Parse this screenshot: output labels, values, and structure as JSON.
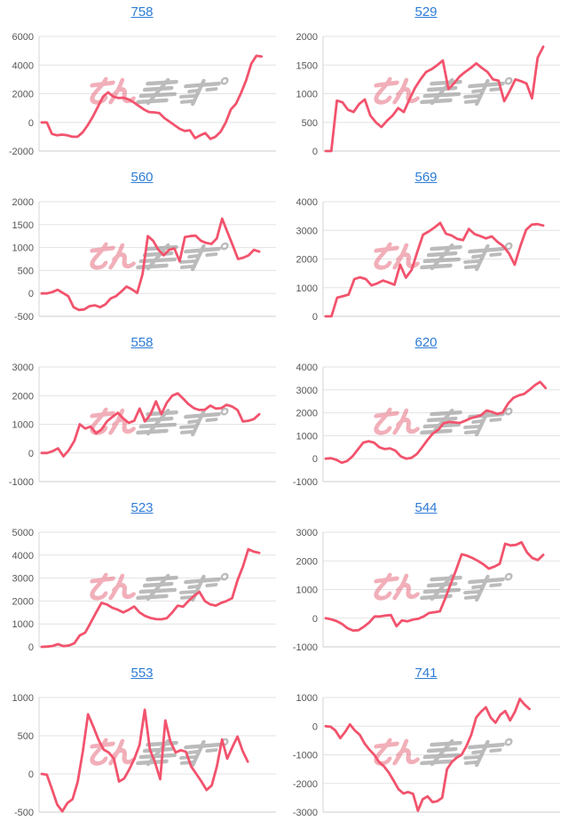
{
  "page": {
    "background": "#ffffff"
  },
  "style": {
    "line_color": "#f2536d",
    "link_color": "#2e7cd6",
    "grid_color": "#e3e3e3",
    "axis_color": "#d4d4d4",
    "tick_label_color": "#565656",
    "watermark_pink": "#e76f81",
    "watermark_gray": "#8f8f8f"
  },
  "watermark": {
    "text_pink": "みん",
    "text_gray": "レポ"
  },
  "chart_data": [
    {
      "type": "line",
      "title": "758",
      "ylabel": "",
      "xlabel": "",
      "yticks": [
        6000,
        4000,
        2000,
        0,
        -2000
      ],
      "ylim": [
        -2000,
        6000
      ],
      "grid": true,
      "span": 0.96,
      "values": [
        0,
        0,
        -800,
        -900,
        -850,
        -900,
        -1000,
        -1000,
        -700,
        -200,
        400,
        1100,
        1800,
        2100,
        1800,
        1700,
        1720,
        1600,
        1400,
        1150,
        900,
        720,
        700,
        650,
        300,
        50,
        -200,
        -450,
        -600,
        -550,
        -1100,
        -900,
        -750,
        -1150,
        -1000,
        -650,
        0,
        900,
        1300,
        2050,
        2950,
        4100,
        4650,
        4600
      ]
    },
    {
      "type": "line",
      "title": "529",
      "ylabel": "",
      "xlabel": "",
      "yticks": [
        2000,
        1500,
        1000,
        500,
        0
      ],
      "ylim": [
        0,
        2000
      ],
      "grid": true,
      "span": 0.95,
      "values": [
        0,
        0,
        880,
        850,
        720,
        680,
        820,
        900,
        620,
        500,
        420,
        530,
        620,
        750,
        680,
        900,
        1100,
        1250,
        1380,
        1430,
        1500,
        1580,
        1080,
        1180,
        1300,
        1380,
        1450,
        1530,
        1450,
        1380,
        1250,
        1230,
        870,
        1050,
        1250,
        1220,
        1180,
        920,
        1630,
        1820
      ]
    },
    {
      "type": "line",
      "title": "560",
      "ylabel": "",
      "xlabel": "",
      "yticks": [
        2000,
        1500,
        1000,
        500,
        0,
        -500
      ],
      "ylim": [
        -500,
        2000
      ],
      "grid": true,
      "span": 0.95,
      "values": [
        0,
        0,
        30,
        80,
        10,
        -60,
        -300,
        -360,
        -350,
        -280,
        -260,
        -300,
        -240,
        -110,
        -60,
        40,
        150,
        90,
        10,
        420,
        1250,
        1150,
        950,
        830,
        950,
        980,
        700,
        1230,
        1250,
        1260,
        1150,
        1100,
        1080,
        1200,
        1630,
        1340,
        1050,
        750,
        780,
        830,
        950,
        910
      ]
    },
    {
      "type": "line",
      "title": "569",
      "ylabel": "",
      "xlabel": "",
      "yticks": [
        4000,
        3000,
        2000,
        1000,
        0
      ],
      "ylim": [
        0,
        4000
      ],
      "grid": true,
      "span": 0.95,
      "values": [
        0,
        0,
        650,
        700,
        760,
        1300,
        1360,
        1300,
        1080,
        1150,
        1250,
        1180,
        1100,
        1800,
        1350,
        1620,
        2250,
        2850,
        2960,
        3100,
        3260,
        2880,
        2820,
        2700,
        2660,
        3050,
        2870,
        2800,
        2720,
        2790,
        2600,
        2450,
        2200,
        1800,
        2450,
        3020,
        3200,
        3220,
        3170
      ]
    },
    {
      "type": "line",
      "title": "558",
      "ylabel": "",
      "xlabel": "",
      "yticks": [
        3000,
        2000,
        1000,
        0,
        -1000
      ],
      "ylim": [
        -1000,
        3000
      ],
      "grid": true,
      "span": 0.95,
      "values": [
        0,
        0,
        60,
        160,
        -120,
        100,
        420,
        1000,
        850,
        920,
        680,
        820,
        1100,
        1260,
        1400,
        1200,
        1050,
        1120,
        1550,
        1100,
        1350,
        1800,
        1350,
        1750,
        2000,
        2080,
        1900,
        1700,
        1560,
        1500,
        1510,
        1650,
        1550,
        1560,
        1680,
        1620,
        1500,
        1100,
        1120,
        1180,
        1350
      ]
    },
    {
      "type": "line",
      "title": "620",
      "ylabel": "",
      "xlabel": "",
      "yticks": [
        4000,
        3000,
        2000,
        1000,
        0,
        -1000
      ],
      "ylim": [
        -1000,
        4000
      ],
      "grid": true,
      "span": 0.96,
      "values": [
        0,
        20,
        -50,
        -180,
        -100,
        100,
        400,
        700,
        760,
        700,
        500,
        420,
        450,
        350,
        100,
        0,
        40,
        200,
        500,
        820,
        1100,
        1260,
        1550,
        1600,
        1580,
        1560,
        1650,
        1760,
        1820,
        1900,
        2100,
        2040,
        1950,
        2010,
        2400,
        2650,
        2760,
        2820,
        3000,
        3200,
        3350,
        3080
      ]
    },
    {
      "type": "line",
      "title": "523",
      "ylabel": "",
      "xlabel": "",
      "yticks": [
        5000,
        4000,
        3000,
        2000,
        1000,
        0
      ],
      "ylim": [
        0,
        5000
      ],
      "grid": true,
      "span": 0.95,
      "values": [
        0,
        10,
        40,
        120,
        30,
        60,
        160,
        500,
        620,
        1050,
        1500,
        1920,
        1850,
        1700,
        1620,
        1500,
        1620,
        1760,
        1500,
        1350,
        1260,
        1210,
        1200,
        1250,
        1500,
        1800,
        1750,
        2000,
        2220,
        2400,
        2000,
        1850,
        1800,
        1920,
        2000,
        2120,
        2900,
        3500,
        4260,
        4150,
        4100
      ]
    },
    {
      "type": "line",
      "title": "544",
      "ylabel": "",
      "xlabel": "",
      "yticks": [
        3000,
        2000,
        1000,
        0,
        -1000
      ],
      "ylim": [
        -1000,
        3000
      ],
      "grid": true,
      "span": 0.95,
      "values": [
        0,
        -40,
        -100,
        -200,
        -350,
        -430,
        -420,
        -300,
        -150,
        60,
        60,
        90,
        110,
        -280,
        -80,
        -110,
        -50,
        -20,
        60,
        180,
        210,
        240,
        700,
        1200,
        1700,
        2230,
        2180,
        2100,
        2000,
        1880,
        1730,
        1800,
        1900,
        2600,
        2540,
        2560,
        2650,
        2300,
        2100,
        2030,
        2210
      ]
    },
    {
      "type": "line",
      "title": "553",
      "ylabel": "",
      "xlabel": "",
      "yticks": [
        1000,
        500,
        0,
        -500
      ],
      "ylim": [
        -500,
        1000
      ],
      "grid": true,
      "span": 0.9,
      "values": [
        0,
        -10,
        -200,
        -400,
        -490,
        -380,
        -330,
        -100,
        300,
        780,
        620,
        450,
        320,
        280,
        200,
        -100,
        -60,
        60,
        200,
        380,
        840,
        320,
        150,
        -70,
        700,
        420,
        280,
        310,
        290,
        100,
        0,
        -100,
        -210,
        -150,
        100,
        450,
        200,
        350,
        490,
        300,
        160
      ]
    },
    {
      "type": "line",
      "title": "741",
      "ylabel": "",
      "xlabel": "",
      "yticks": [
        1000,
        0,
        -1000,
        -2000,
        -3000
      ],
      "ylim": [
        -3000,
        1000
      ],
      "grid": true,
      "span": 0.89,
      "values": [
        0,
        -20,
        -150,
        -420,
        -200,
        60,
        -150,
        -300,
        -600,
        -820,
        -1000,
        -1250,
        -1400,
        -1620,
        -1900,
        -2200,
        -2350,
        -2300,
        -2360,
        -2950,
        -2550,
        -2450,
        -2650,
        -2620,
        -2500,
        -1500,
        -1250,
        -1100,
        -1000,
        -700,
        -300,
        300,
        500,
        660,
        300,
        120,
        400,
        530,
        200,
        500,
        950,
        750,
        600
      ]
    }
  ]
}
